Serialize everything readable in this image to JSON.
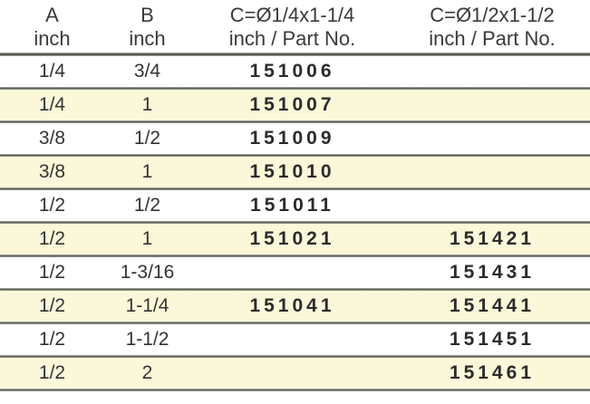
{
  "table": {
    "headers": [
      {
        "line1": "A",
        "line2": "inch"
      },
      {
        "line1": "B",
        "line2": "inch"
      },
      {
        "line1": "C=Ø1/4x1-1/4",
        "line2": "inch / Part No."
      },
      {
        "line1": "C=Ø1/2x1-1/2",
        "line2": "inch / Part No."
      }
    ],
    "rows": [
      {
        "a": "1/4",
        "b": "3/4",
        "part_c14": "151006",
        "part_c12": ""
      },
      {
        "a": "1/4",
        "b": "1",
        "part_c14": "151007",
        "part_c12": ""
      },
      {
        "a": "3/8",
        "b": "1/2",
        "part_c14": "151009",
        "part_c12": ""
      },
      {
        "a": "3/8",
        "b": "1",
        "part_c14": "151010",
        "part_c12": ""
      },
      {
        "a": "1/2",
        "b": "1/2",
        "part_c14": "151011",
        "part_c12": ""
      },
      {
        "a": "1/2",
        "b": "1",
        "part_c14": "151021",
        "part_c12": "151421"
      },
      {
        "a": "1/2",
        "b": "1-3/16",
        "part_c14": "",
        "part_c12": "151431"
      },
      {
        "a": "1/2",
        "b": "1-1/4",
        "part_c14": "151041",
        "part_c12": "151441"
      },
      {
        "a": "1/2",
        "b": "1-1/2",
        "part_c14": "",
        "part_c12": "151451"
      },
      {
        "a": "1/2",
        "b": "2",
        "part_c14": "",
        "part_c12": "151461"
      }
    ]
  },
  "colors": {
    "row_alt_background": "#FBF8DA",
    "divider_gray": "#61615A",
    "text": "#2D2D2D"
  }
}
